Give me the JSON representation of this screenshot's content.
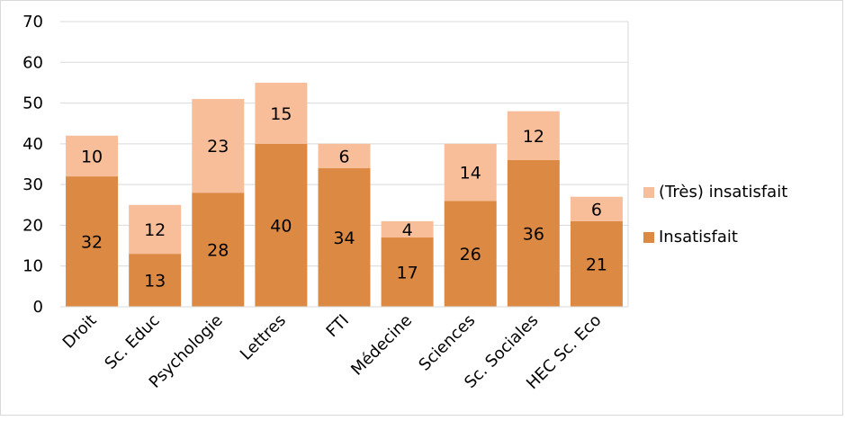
{
  "chart_data": {
    "type": "bar",
    "stacked": true,
    "title": "",
    "xlabel": "",
    "ylabel": "",
    "ylim": [
      0,
      70
    ],
    "yticks": [
      0,
      10,
      20,
      30,
      40,
      50,
      60,
      70
    ],
    "grid": true,
    "legend_position": "right",
    "categories": [
      "Droit",
      "Sc. Educ",
      "Psychologie",
      "Lettres",
      "FTI",
      "Médecine",
      "Sciences",
      "Sc. Sociales",
      "HEC Sc. Eco"
    ],
    "series": [
      {
        "name": "Insatisfait",
        "color": "#DC8A43",
        "values": [
          32,
          13,
          28,
          40,
          34,
          17,
          26,
          36,
          21
        ]
      },
      {
        "name": "(Très) insatisfait",
        "color": "#F8BE99",
        "values": [
          10,
          12,
          23,
          15,
          6,
          4,
          14,
          12,
          6
        ]
      }
    ],
    "legend_order": [
      1,
      0
    ]
  }
}
